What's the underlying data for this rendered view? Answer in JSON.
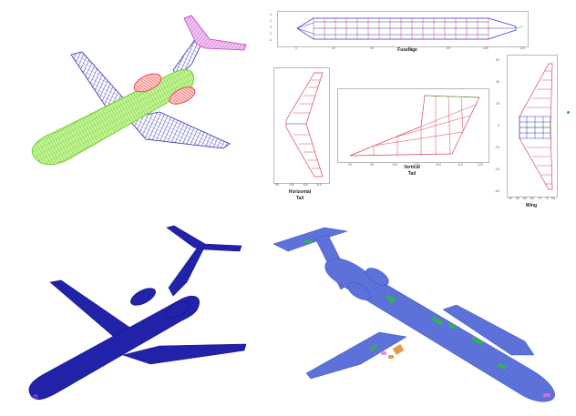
{
  "figure": {
    "panels": {
      "wireframe_model": {},
      "component_meshes": {
        "fuselage": {
          "caption": "Fuselage",
          "x_ticks": [
            "0",
            "20",
            "40",
            "60",
            "80",
            "100",
            "120"
          ],
          "y_ticks": [
            "4",
            "2",
            "0",
            "-2",
            "-4"
          ]
        },
        "horizontal_tail": {
          "caption_line1": "Horizontal",
          "caption_line2": "Tail",
          "x_ticks": [
            "95",
            "100",
            "105",
            "110"
          ]
        },
        "vertical_tail": {
          "caption_line1": "Vertical",
          "caption_line2": "Tail",
          "x_ticks": [
            "90",
            "95",
            "100",
            "105",
            "110",
            "115",
            "120"
          ]
        },
        "wing": {
          "caption": "Wing",
          "y_ticks": [
            "60",
            "40",
            "20",
            "0",
            "-20",
            "-40",
            "-60"
          ],
          "x_ticks": [
            "50",
            "55",
            "60",
            "65",
            "70",
            "75",
            "80"
          ]
        }
      },
      "fem_model": {},
      "stress_result": {}
    },
    "colors": {
      "fuselage_wire": "#8fe33a",
      "wing_wire": "#2d2db4",
      "tail_wire": "#c040c0",
      "engine_wire": "#e03a3a",
      "mesh_blue": "#1f1fa6",
      "plot_red": "#e0405a",
      "plot_blue": "#3030c0",
      "plot_green": "#30b030",
      "stress_base": "#5a6fd8",
      "stress_green": "#2cb84a",
      "stress_orange": "#e08a30"
    }
  }
}
